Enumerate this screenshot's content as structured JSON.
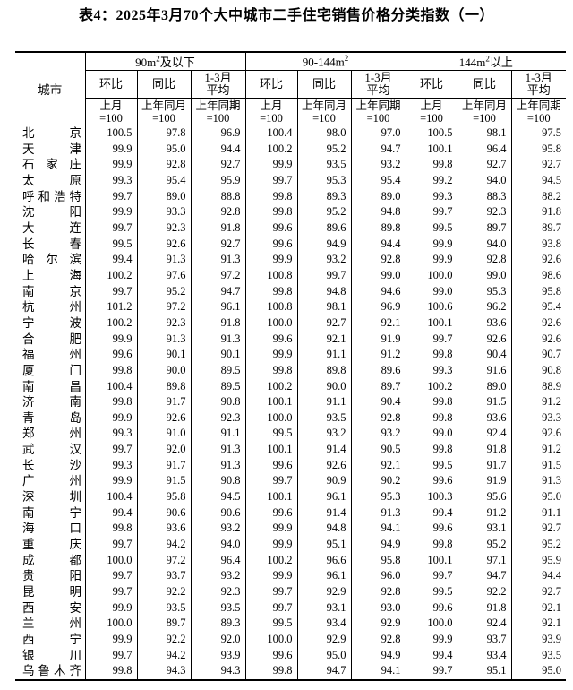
{
  "title": "表4：2025年3月70个大中城市二手住宅销售价格分类指数（一）",
  "table": {
    "city_header": "城市",
    "groups": [
      {
        "pre": "90m",
        "sup": "2",
        "post": "及以下"
      },
      {
        "pre": "90-144m",
        "sup": "2",
        "post": ""
      },
      {
        "pre": "144m",
        "sup": "2",
        "post": "以上"
      }
    ],
    "metric_headers": [
      [
        "环比"
      ],
      [
        "同比"
      ],
      [
        "1-3月",
        "平均"
      ]
    ],
    "base_headers": [
      [
        "上月",
        "=100"
      ],
      [
        "上年同月",
        "=100"
      ],
      [
        "上年同期",
        "=100"
      ]
    ],
    "rows": [
      {
        "city": "北京",
        "values": [
          "100.5",
          "97.8",
          "96.9",
          "100.4",
          "98.0",
          "97.0",
          "100.5",
          "98.1",
          "97.5"
        ]
      },
      {
        "city": "天津",
        "values": [
          "99.9",
          "95.0",
          "94.4",
          "100.2",
          "95.2",
          "94.7",
          "100.1",
          "96.4",
          "95.8"
        ]
      },
      {
        "city": "石家庄",
        "values": [
          "99.9",
          "92.8",
          "92.7",
          "99.9",
          "93.5",
          "93.2",
          "99.8",
          "92.7",
          "92.7"
        ]
      },
      {
        "city": "太原",
        "values": [
          "99.3",
          "95.4",
          "95.9",
          "99.7",
          "95.3",
          "95.4",
          "99.2",
          "94.0",
          "94.5"
        ]
      },
      {
        "city": "呼和浩特",
        "values": [
          "99.7",
          "89.0",
          "88.8",
          "99.8",
          "89.3",
          "89.0",
          "99.3",
          "88.3",
          "88.2"
        ]
      },
      {
        "city": "沈阳",
        "values": [
          "99.9",
          "93.3",
          "92.8",
          "99.8",
          "95.2",
          "94.8",
          "99.7",
          "92.3",
          "91.8"
        ]
      },
      {
        "city": "大连",
        "values": [
          "99.7",
          "92.3",
          "91.8",
          "99.6",
          "89.6",
          "89.8",
          "99.5",
          "89.7",
          "89.7"
        ]
      },
      {
        "city": "长春",
        "values": [
          "99.5",
          "92.6",
          "92.7",
          "99.6",
          "94.9",
          "94.4",
          "99.9",
          "94.0",
          "93.8"
        ]
      },
      {
        "city": "哈尔滨",
        "values": [
          "99.4",
          "91.3",
          "91.3",
          "99.9",
          "93.2",
          "92.8",
          "99.9",
          "92.8",
          "92.6"
        ]
      },
      {
        "city": "上海",
        "values": [
          "100.2",
          "97.6",
          "97.2",
          "100.8",
          "99.7",
          "99.0",
          "100.0",
          "99.0",
          "98.6"
        ]
      },
      {
        "city": "南京",
        "values": [
          "99.7",
          "95.2",
          "94.7",
          "99.8",
          "94.8",
          "94.6",
          "99.0",
          "95.3",
          "95.8"
        ]
      },
      {
        "city": "杭州",
        "values": [
          "101.2",
          "97.2",
          "96.1",
          "100.8",
          "98.1",
          "96.9",
          "100.6",
          "96.2",
          "95.4"
        ]
      },
      {
        "city": "宁波",
        "values": [
          "100.2",
          "92.3",
          "91.8",
          "100.0",
          "92.7",
          "92.1",
          "100.1",
          "93.6",
          "92.6"
        ]
      },
      {
        "city": "合肥",
        "values": [
          "99.9",
          "91.3",
          "91.3",
          "99.6",
          "92.1",
          "91.9",
          "99.7",
          "92.6",
          "92.6"
        ]
      },
      {
        "city": "福州",
        "values": [
          "99.6",
          "90.1",
          "90.1",
          "99.9",
          "91.1",
          "91.2",
          "99.8",
          "90.4",
          "90.7"
        ]
      },
      {
        "city": "厦门",
        "values": [
          "99.8",
          "90.0",
          "89.5",
          "99.8",
          "89.8",
          "89.6",
          "99.3",
          "91.6",
          "90.8"
        ]
      },
      {
        "city": "南昌",
        "values": [
          "100.4",
          "89.8",
          "89.5",
          "100.2",
          "90.0",
          "89.7",
          "100.2",
          "89.0",
          "88.9"
        ]
      },
      {
        "city": "济南",
        "values": [
          "99.8",
          "91.7",
          "90.8",
          "100.1",
          "91.1",
          "90.4",
          "99.8",
          "91.5",
          "91.2"
        ]
      },
      {
        "city": "青岛",
        "values": [
          "99.9",
          "92.6",
          "92.3",
          "100.0",
          "93.5",
          "92.8",
          "99.8",
          "93.6",
          "93.3"
        ]
      },
      {
        "city": "郑州",
        "values": [
          "99.3",
          "91.0",
          "91.1",
          "99.5",
          "93.2",
          "93.2",
          "99.0",
          "92.4",
          "92.6"
        ]
      },
      {
        "city": "武汉",
        "values": [
          "99.7",
          "92.0",
          "91.3",
          "100.1",
          "91.4",
          "90.5",
          "99.8",
          "91.8",
          "91.2"
        ]
      },
      {
        "city": "长沙",
        "values": [
          "99.3",
          "91.7",
          "91.3",
          "99.6",
          "92.6",
          "92.1",
          "99.5",
          "91.7",
          "91.5"
        ]
      },
      {
        "city": "广州",
        "values": [
          "99.9",
          "91.5",
          "90.8",
          "99.7",
          "90.9",
          "90.2",
          "99.6",
          "91.9",
          "91.3"
        ]
      },
      {
        "city": "深圳",
        "values": [
          "100.4",
          "95.8",
          "94.5",
          "100.1",
          "96.1",
          "95.3",
          "100.3",
          "95.6",
          "95.0"
        ]
      },
      {
        "city": "南宁",
        "values": [
          "99.4",
          "90.6",
          "90.6",
          "99.6",
          "91.4",
          "91.3",
          "99.4",
          "91.2",
          "91.1"
        ]
      },
      {
        "city": "海口",
        "values": [
          "99.8",
          "93.6",
          "93.2",
          "99.9",
          "94.8",
          "94.1",
          "99.6",
          "93.1",
          "92.7"
        ]
      },
      {
        "city": "重庆",
        "values": [
          "99.7",
          "94.2",
          "94.0",
          "99.9",
          "95.1",
          "94.9",
          "99.8",
          "95.2",
          "95.2"
        ]
      },
      {
        "city": "成都",
        "values": [
          "100.0",
          "97.2",
          "96.4",
          "100.2",
          "96.6",
          "95.8",
          "100.1",
          "97.1",
          "95.9"
        ]
      },
      {
        "city": "贵阳",
        "values": [
          "99.7",
          "93.7",
          "93.2",
          "99.9",
          "96.1",
          "96.0",
          "99.7",
          "94.7",
          "94.4"
        ]
      },
      {
        "city": "昆明",
        "values": [
          "99.7",
          "92.2",
          "92.3",
          "99.7",
          "92.9",
          "92.8",
          "99.5",
          "92.2",
          "92.7"
        ]
      },
      {
        "city": "西安",
        "values": [
          "99.9",
          "93.5",
          "93.5",
          "99.7",
          "93.1",
          "93.0",
          "99.6",
          "91.8",
          "92.1"
        ]
      },
      {
        "city": "兰州",
        "values": [
          "100.0",
          "89.7",
          "89.3",
          "99.5",
          "93.4",
          "92.9",
          "100.0",
          "92.4",
          "92.1"
        ]
      },
      {
        "city": "西宁",
        "values": [
          "99.9",
          "92.2",
          "92.0",
          "100.0",
          "92.9",
          "92.8",
          "99.9",
          "93.7",
          "93.9"
        ]
      },
      {
        "city": "银川",
        "values": [
          "99.7",
          "94.2",
          "93.9",
          "99.6",
          "95.0",
          "94.9",
          "99.4",
          "93.4",
          "93.5"
        ]
      },
      {
        "city": "乌鲁木齐",
        "values": [
          "99.8",
          "94.3",
          "94.3",
          "99.8",
          "94.7",
          "94.1",
          "99.7",
          "95.1",
          "95.0"
        ]
      }
    ]
  }
}
